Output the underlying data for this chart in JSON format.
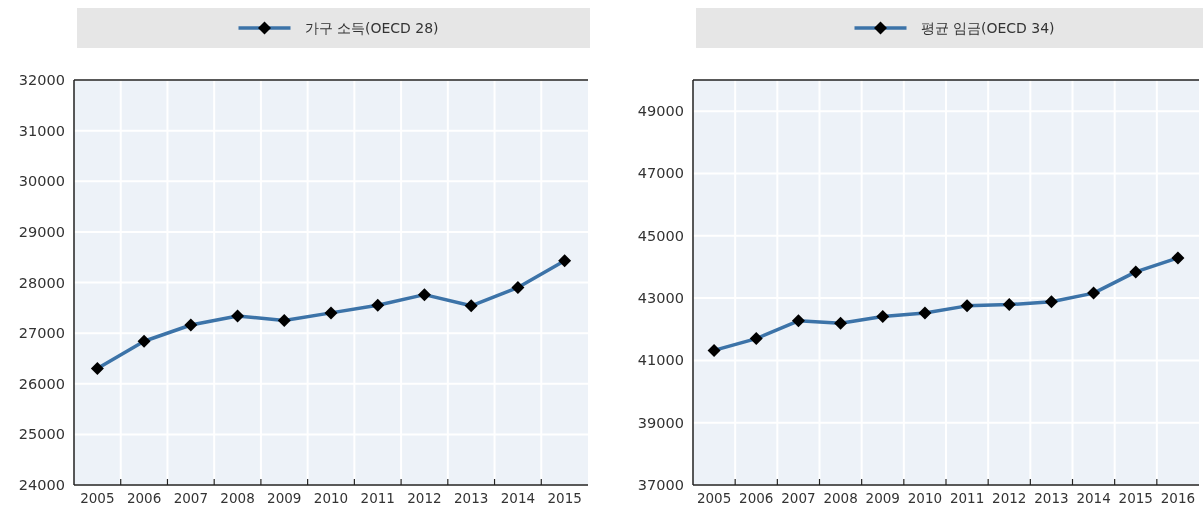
{
  "chart_data": [
    {
      "type": "line",
      "categories": [
        "2005",
        "2006",
        "2007",
        "2008",
        "2009",
        "2010",
        "2011",
        "2012",
        "2013",
        "2014",
        "2015"
      ],
      "series": [
        {
          "name": "가구 소득(OECD 28)",
          "color": "#3c73a8",
          "values": [
            26300,
            26840,
            27160,
            27340,
            27250,
            27400,
            27550,
            27760,
            27540,
            27900,
            28430
          ]
        }
      ],
      "ylim": [
        24000,
        32000
      ],
      "yticks": [
        24000,
        25000,
        26000,
        27000,
        28000,
        29000,
        30000,
        31000,
        32000
      ],
      "grid": true,
      "legend": "top",
      "marker": "diamond"
    },
    {
      "type": "line",
      "categories": [
        "2005",
        "2006",
        "2007",
        "2008",
        "2009",
        "2010",
        "2011",
        "2012",
        "2013",
        "2014",
        "2015",
        "2016"
      ],
      "series": [
        {
          "name": "평균 임금(OECD 34)",
          "color": "#3c73a8",
          "values": [
            41320,
            41700,
            42270,
            42190,
            42410,
            42520,
            42750,
            42790,
            42880,
            43160,
            43840,
            44290
          ]
        }
      ],
      "ylim": [
        37000,
        50000
      ],
      "yticks": [
        37000,
        39000,
        41000,
        43000,
        45000,
        47000,
        49000
      ],
      "grid": true,
      "legend": "top",
      "marker": "diamond"
    }
  ]
}
